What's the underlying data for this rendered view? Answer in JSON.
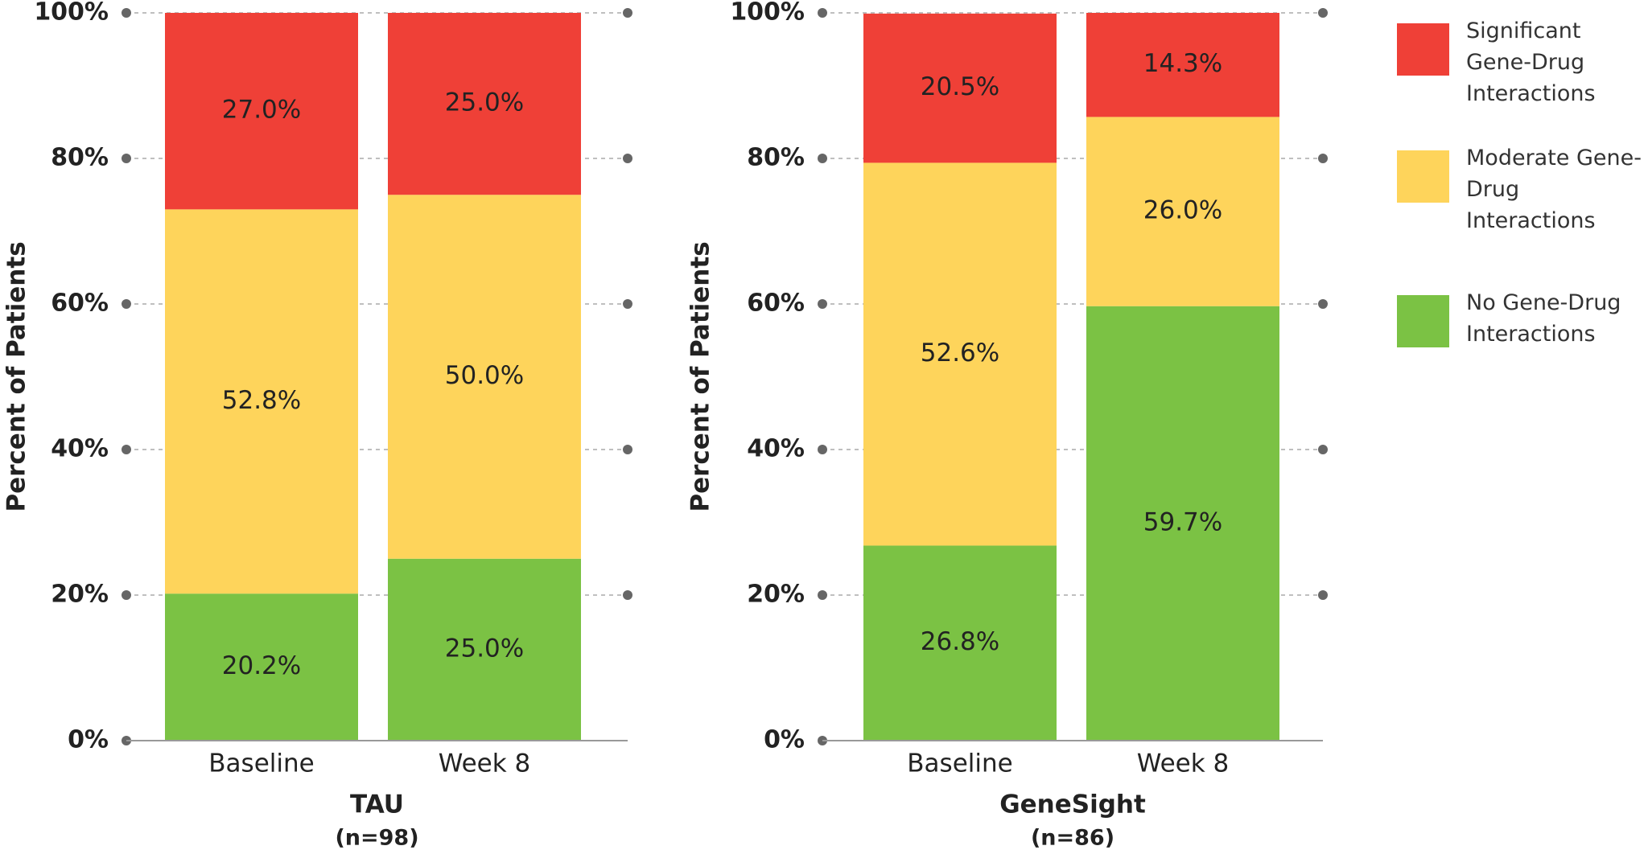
{
  "chart_data": [
    {
      "type": "bar",
      "stacked": true,
      "title": "TAU",
      "subtitle": "(n=98)",
      "ylabel": "Percent of Patients",
      "categories": [
        "Baseline",
        "Week 8"
      ],
      "series": [
        {
          "name": "No Gene-Drug Interactions",
          "color": "#7bc244",
          "values": [
            20.2,
            25.0
          ],
          "value_labels": [
            "20.2%",
            "25.0%"
          ]
        },
        {
          "name": "Moderate Gene-Drug Interactions",
          "color": "#fed45b",
          "values": [
            52.8,
            50.0
          ],
          "value_labels": [
            "52.8%",
            "50.0%"
          ]
        },
        {
          "name": "Significant Gene-Drug Interactions",
          "color": "#ef4037",
          "values": [
            27.0,
            25.0
          ],
          "value_labels": [
            "27.0%",
            "25.0%"
          ]
        }
      ],
      "ylim": [
        0,
        100
      ],
      "yticks": [
        {
          "value": 0,
          "label": "0%"
        },
        {
          "value": 20,
          "label": "20%"
        },
        {
          "value": 40,
          "label": "40%"
        },
        {
          "value": 60,
          "label": "60%"
        },
        {
          "value": 80,
          "label": "80%"
        },
        {
          "value": 100,
          "label": "100%"
        }
      ],
      "grid": true,
      "legend": "right"
    },
    {
      "type": "bar",
      "stacked": true,
      "title": "GeneSight",
      "subtitle": "(n=86)",
      "ylabel": "Percent of Patients",
      "categories": [
        "Baseline",
        "Week 8"
      ],
      "series": [
        {
          "color": "#7bc244",
          "values": [
            26.8,
            59.7
          ],
          "value_labels": [
            "26.8%",
            "59.7%"
          ]
        },
        {
          "color": "#fed45b",
          "values": [
            52.6,
            26.0
          ],
          "value_labels": [
            "52.6%",
            "26.0%"
          ]
        },
        {
          "color": "#ef4037",
          "values": [
            20.5,
            14.3
          ],
          "value_labels": [
            "20.5%",
            "14.3%"
          ]
        }
      ],
      "ylim": [
        0,
        100
      ],
      "yticks": [
        {
          "value": 0,
          "label": "0%"
        },
        {
          "value": 20,
          "label": "20%"
        },
        {
          "value": 40,
          "label": "40%"
        },
        {
          "value": 60,
          "label": "60%"
        },
        {
          "value": 80,
          "label": "80%"
        },
        {
          "value": 100,
          "label": "100%"
        }
      ],
      "grid": true
    }
  ]
}
